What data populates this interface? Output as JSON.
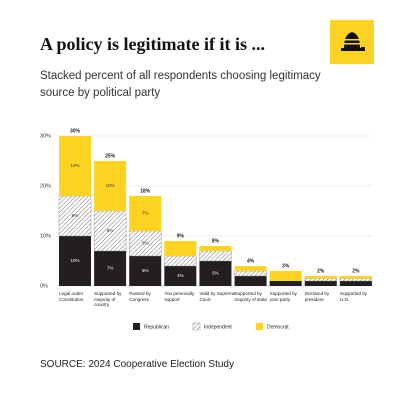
{
  "chart_data": {
    "type": "stacked-bar",
    "title": "A policy is legitimate if it is ...",
    "subtitle": "Stacked percent of all respondents choosing legitimacy source by political party",
    "source": "SOURCE: 2024 Cooperative Election Study",
    "categories": [
      "Legal under Constitution",
      "Supported by majority of country",
      "Passed by Congress",
      "You personally support",
      "Valid by Supreme Court",
      "Supported by majority of state",
      "Supported by your party",
      "Declared by president",
      "Supported by U.N."
    ],
    "series": [
      {
        "name": "Republican",
        "color": "#231f20",
        "values": [
          10,
          7,
          6,
          4,
          5,
          2,
          1,
          1,
          1
        ],
        "value_labels": [
          "10%",
          "7%",
          "6%",
          "4%",
          "5%",
          null,
          null,
          null,
          null
        ]
      },
      {
        "name": "Independent",
        "color": "#ffffff",
        "pattern": "hatch",
        "values": [
          8,
          8,
          5,
          2,
          2,
          1,
          0,
          0.5,
          0.5
        ],
        "value_labels": [
          "8%",
          "8%",
          "5%",
          null,
          null,
          null,
          null,
          null,
          null
        ]
      },
      {
        "name": "Democrat",
        "color": "#fed322",
        "values": [
          12,
          10,
          7,
          3,
          1,
          1,
          2,
          0.5,
          0.5
        ],
        "value_labels": [
          "12%",
          "10%",
          "7%",
          null,
          null,
          null,
          null,
          null,
          null
        ]
      }
    ],
    "totals": [
      30,
      25,
      18,
      9,
      8,
      4,
      3,
      2,
      2
    ],
    "total_labels": [
      "30%",
      "25%",
      "18%",
      "9%",
      "8%",
      "4%",
      "3%",
      "2%",
      "2%"
    ],
    "ylim": [
      0,
      30
    ],
    "yticks": [
      {
        "value": 0,
        "label": "0%"
      },
      {
        "value": 10,
        "label": "10%"
      },
      {
        "value": 20,
        "label": "20%"
      },
      {
        "value": 30,
        "label": "30%"
      }
    ],
    "grid": true
  }
}
